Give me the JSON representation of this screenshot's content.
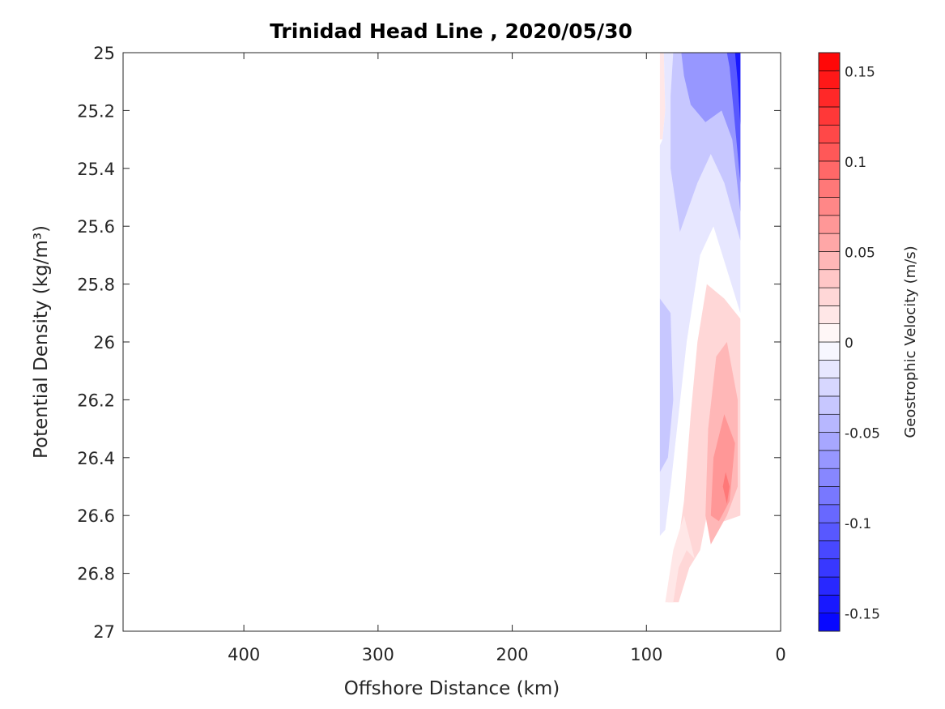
{
  "chart_data": {
    "type": "heatmap",
    "title": "Trinidad Head Line , 2020/05/30",
    "xlabel": "Offshore Distance (km)",
    "ylabel": "Potential Density (kg/m³)",
    "xlim": [
      490,
      0
    ],
    "x_reversed": true,
    "ylim": [
      25,
      27
    ],
    "y_reversed": true,
    "x_ticks": [
      400,
      300,
      200,
      100,
      0
    ],
    "y_ticks": [
      25,
      25.2,
      25.4,
      25.6,
      25.8,
      26,
      26.2,
      26.4,
      26.6,
      26.8,
      27
    ],
    "y_tick_labels": [
      "25",
      "25.2",
      "25.4",
      "25.6",
      "25.8",
      "26",
      "26.2",
      "26.4",
      "26.6",
      "26.8",
      "27"
    ],
    "colorbar": {
      "label": "Geostrophic Velocity (m/s)",
      "range": [
        -0.16,
        0.16
      ],
      "levels": 32,
      "ticks": [
        0.15,
        0.1,
        0.05,
        0,
        -0.05,
        -0.1,
        -0.15
      ],
      "tick_labels": [
        "0.15",
        "0.1",
        "0.05",
        "0",
        "-0.05",
        "-0.1",
        "-0.15"
      ],
      "colormap": "blue-white-red",
      "low_color": "#0000ff",
      "high_color": "#ff0000",
      "mid_color": "#ffffff"
    },
    "grid": false,
    "regions": [
      {
        "name": "positive-northern-edge",
        "value": 0.01,
        "points": [
          [
            90,
            25.0
          ],
          [
            87,
            25.0
          ],
          [
            86,
            25.2
          ],
          [
            88,
            25.3
          ],
          [
            90,
            25.3
          ]
        ]
      },
      {
        "name": "negative-upper-broad",
        "value": -0.02,
        "points": [
          [
            87,
            25.0
          ],
          [
            30,
            25.0
          ],
          [
            30,
            25.9
          ],
          [
            40,
            25.75
          ],
          [
            50,
            25.6
          ],
          [
            60,
            25.7
          ],
          [
            70,
            26.0
          ],
          [
            82,
            26.5
          ],
          [
            86,
            26.65
          ],
          [
            90,
            26.67
          ],
          [
            90,
            25.32
          ],
          [
            88,
            25.3
          ],
          [
            86,
            25.2
          ]
        ]
      },
      {
        "name": "negative-upper-mid",
        "value": -0.04,
        "points": [
          [
            80,
            25.0
          ],
          [
            30,
            25.0
          ],
          [
            30,
            25.65
          ],
          [
            42,
            25.45
          ],
          [
            52,
            25.35
          ],
          [
            62,
            25.45
          ],
          [
            75,
            25.62
          ],
          [
            82,
            25.4
          ],
          [
            82,
            25.15
          ]
        ]
      },
      {
        "name": "negative-upper-strong",
        "value": -0.07,
        "points": [
          [
            74,
            25.0
          ],
          [
            30,
            25.0
          ],
          [
            30,
            25.55
          ],
          [
            36,
            25.3
          ],
          [
            44,
            25.2
          ],
          [
            56,
            25.24
          ],
          [
            67,
            25.18
          ],
          [
            72,
            25.08
          ]
        ]
      },
      {
        "name": "negative-coastal-core",
        "value": -0.11,
        "points": [
          [
            40,
            25.0
          ],
          [
            30,
            25.0
          ],
          [
            30,
            25.45
          ],
          [
            33,
            25.3
          ],
          [
            36,
            25.15
          ],
          [
            38,
            25.05
          ]
        ]
      },
      {
        "name": "negative-coastal-max",
        "value": -0.15,
        "points": [
          [
            34,
            25.0
          ],
          [
            30,
            25.0
          ],
          [
            30,
            25.25
          ],
          [
            32,
            25.1
          ]
        ]
      },
      {
        "name": "negative-offshore-lobe",
        "value": -0.04,
        "points": [
          [
            90,
            25.85
          ],
          [
            82,
            25.9
          ],
          [
            80,
            26.2
          ],
          [
            84,
            26.4
          ],
          [
            90,
            26.45
          ]
        ]
      },
      {
        "name": "positive-deep-broad",
        "value": 0.02,
        "points": [
          [
            30,
            25.92
          ],
          [
            42,
            25.85
          ],
          [
            55,
            25.8
          ],
          [
            62,
            26.0
          ],
          [
            67,
            26.25
          ],
          [
            72,
            26.55
          ],
          [
            78,
            26.75
          ],
          [
            84,
            26.9
          ],
          [
            76,
            26.9
          ],
          [
            68,
            26.78
          ],
          [
            60,
            26.72
          ],
          [
            55,
            26.6
          ],
          [
            42,
            26.62
          ],
          [
            30,
            26.6
          ]
        ]
      },
      {
        "name": "positive-deep-lower-limb",
        "value": 0.01,
        "points": [
          [
            86,
            26.9
          ],
          [
            80,
            26.9
          ],
          [
            76,
            26.78
          ],
          [
            70,
            26.72
          ],
          [
            64,
            26.75
          ],
          [
            72,
            26.6
          ],
          [
            80,
            26.72
          ]
        ]
      },
      {
        "name": "positive-deep-mid",
        "value": 0.04,
        "points": [
          [
            32,
            26.2
          ],
          [
            40,
            26.0
          ],
          [
            48,
            26.05
          ],
          [
            54,
            26.3
          ],
          [
            56,
            26.6
          ],
          [
            52,
            26.7
          ],
          [
            40,
            26.6
          ],
          [
            32,
            26.5
          ]
        ]
      },
      {
        "name": "positive-deep-core",
        "value": 0.06,
        "points": [
          [
            34,
            26.35
          ],
          [
            42,
            26.25
          ],
          [
            50,
            26.4
          ],
          [
            52,
            26.6
          ],
          [
            46,
            26.62
          ],
          [
            38,
            26.55
          ]
        ]
      },
      {
        "name": "positive-deep-max",
        "value": 0.08,
        "points": [
          [
            38,
            26.5
          ],
          [
            41,
            26.45
          ],
          [
            43,
            26.5
          ],
          [
            40,
            26.56
          ]
        ]
      }
    ]
  }
}
